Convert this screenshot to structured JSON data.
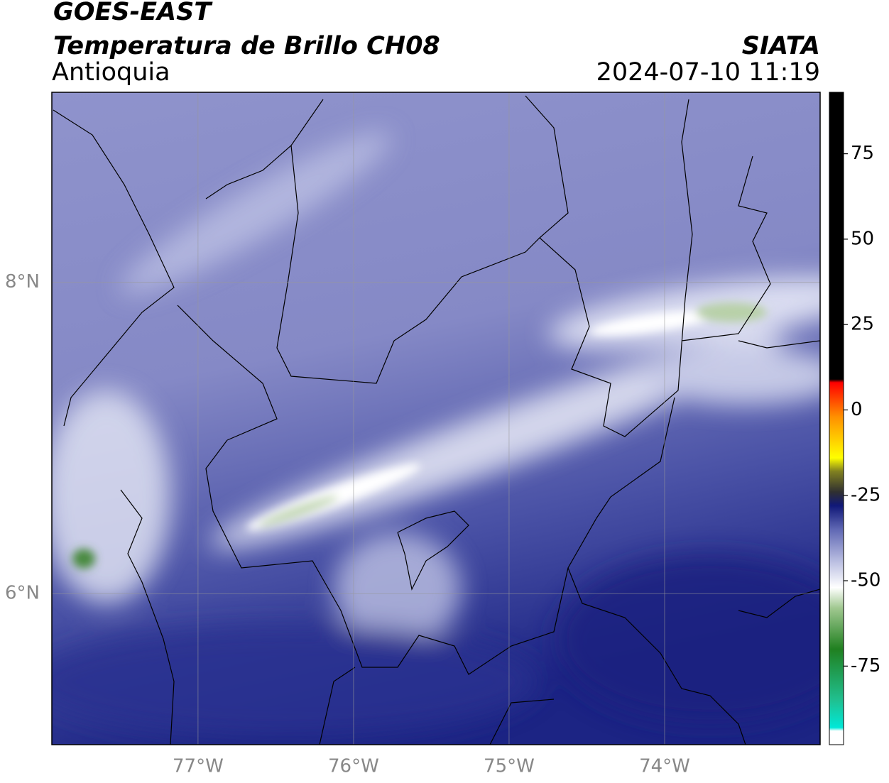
{
  "chart_data": {
    "type": "map",
    "title": "GOES-EAST",
    "subtitle": "Temperatura de Brillo CH08",
    "region": "Antioquia",
    "source": "SIATA",
    "datetime": "2024-07-10 11:19",
    "xlim": [
      -77.94,
      -73.0
    ],
    "ylim": [
      5.03,
      9.22
    ],
    "xticks": [
      {
        "value": -77,
        "label": "77°W"
      },
      {
        "value": -76,
        "label": "76°W"
      },
      {
        "value": -75,
        "label": "75°W"
      },
      {
        "value": -74,
        "label": "74°W"
      }
    ],
    "yticks": [
      {
        "value": 6,
        "label": "6°N"
      },
      {
        "value": 8,
        "label": "8°N"
      }
    ],
    "grid": true,
    "colorbar": {
      "lim": [
        -98,
        93
      ],
      "ticks": [
        -75,
        -50,
        -25,
        0,
        25,
        50,
        75
      ],
      "stops": [
        [
          -98,
          "#ffffff"
        ],
        [
          -94,
          "#ffffff"
        ],
        [
          -93,
          "#00e8d8"
        ],
        [
          -85,
          "#20c090"
        ],
        [
          -70,
          "#208020"
        ],
        [
          -58,
          "#a0c890"
        ],
        [
          -52,
          "#ffffff"
        ],
        [
          -45,
          "#c0c4e4"
        ],
        [
          -35,
          "#6068b4"
        ],
        [
          -28,
          "#101878"
        ],
        [
          -24,
          "#303030"
        ],
        [
          -18,
          "#808020"
        ],
        [
          -14,
          "#ffff00"
        ],
        [
          -2,
          "#ff9000"
        ],
        [
          8,
          "#ff0000"
        ],
        [
          9,
          "#000000"
        ],
        [
          93,
          "#000000"
        ]
      ]
    }
  }
}
